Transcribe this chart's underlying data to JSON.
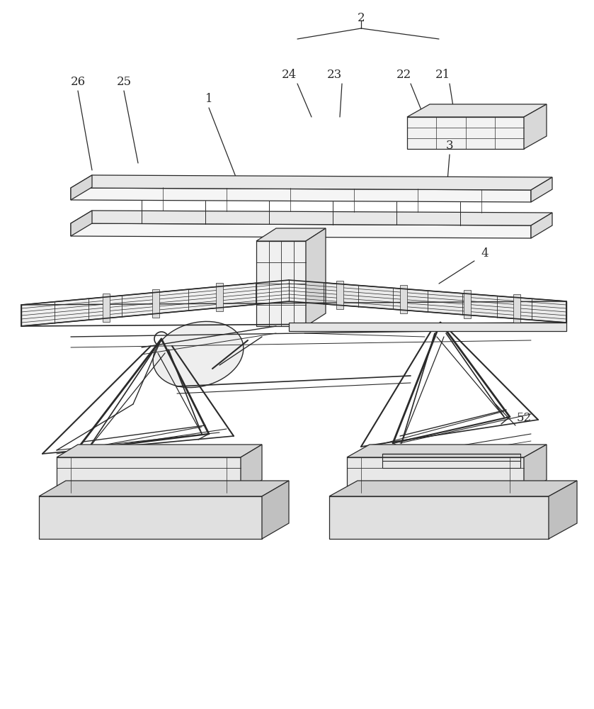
{
  "bg_color": "#ffffff",
  "lc": "#2a2a2a",
  "lw": 0.9,
  "fs": 12,
  "fig_w": 8.39,
  "fig_h": 10.0
}
